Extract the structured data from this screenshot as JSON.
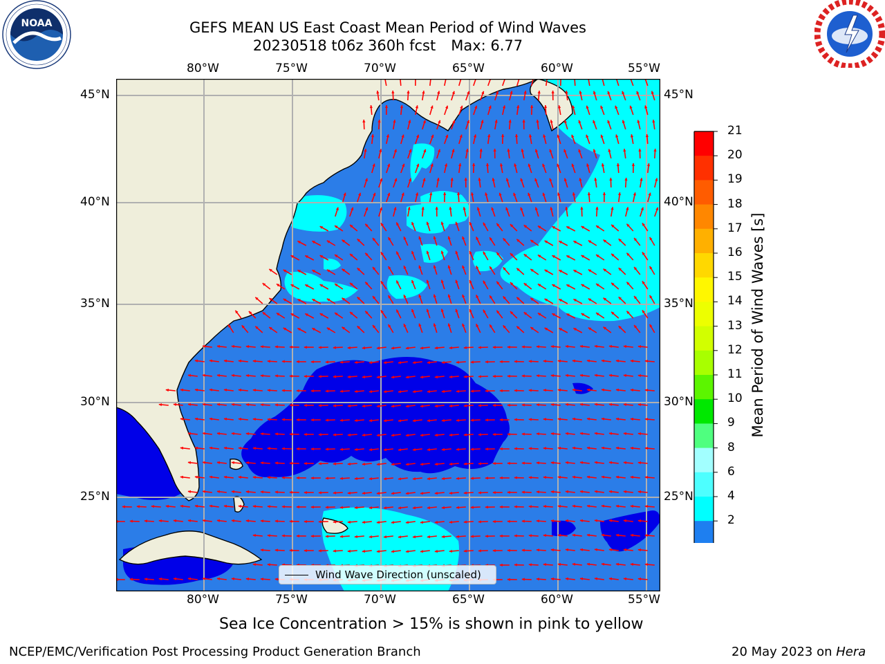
{
  "title": {
    "line1": "GEFS MEAN US East Coast Mean Period of Wind Waves",
    "line2_run": "20230518 t06z 360h fcst",
    "line2_max": "Max: 6.77"
  },
  "logos": {
    "left": {
      "icon": "noaa-logo-icon",
      "text": "NOAA"
    },
    "right": {
      "icon": "nws-logo-icon"
    }
  },
  "map": {
    "lon_ticks": [
      "80°W",
      "75°W",
      "70°W",
      "65°W",
      "60°W",
      "55°W"
    ],
    "lat_ticks": [
      "45°N",
      "40°N",
      "35°N",
      "30°N",
      "25°N"
    ],
    "legend_label": "Wind Wave Direction (unscaled)",
    "colors": {
      "land": "#efeedb",
      "period_2_4": "#2b7de8",
      "period_below_2": "#0000e8",
      "period_4_6": "#00ffff",
      "vector": "#ff0000",
      "grid": "#b0b0b0"
    }
  },
  "colorbar": {
    "label": "Mean Period of Wind Waves [s]",
    "ticks": [
      "21",
      "20",
      "19",
      "18",
      "17",
      "16",
      "15",
      "14",
      "13",
      "12",
      "11",
      "10",
      "9",
      "8",
      "6",
      "4",
      "2"
    ],
    "colors": [
      "#ff0000",
      "#ff3000",
      "#ff5c00",
      "#ff8700",
      "#ffb000",
      "#ffd800",
      "#fff700",
      "#edff00",
      "#d2ff00",
      "#a8ff00",
      "#5cf500",
      "#00e800",
      "#4fff7f",
      "#a2ffff",
      "#4dffff",
      "#00ffff",
      "#1e7ff0"
    ],
    "under_color": "#0000ff"
  },
  "caption": "Sea Ice Concentration > 15% is shown in pink to yellow",
  "footer": {
    "left": "NCEP/EMC/Verification Post Processing Product Generation Branch",
    "date": "20 May 2023 on ",
    "host": "Hera"
  }
}
